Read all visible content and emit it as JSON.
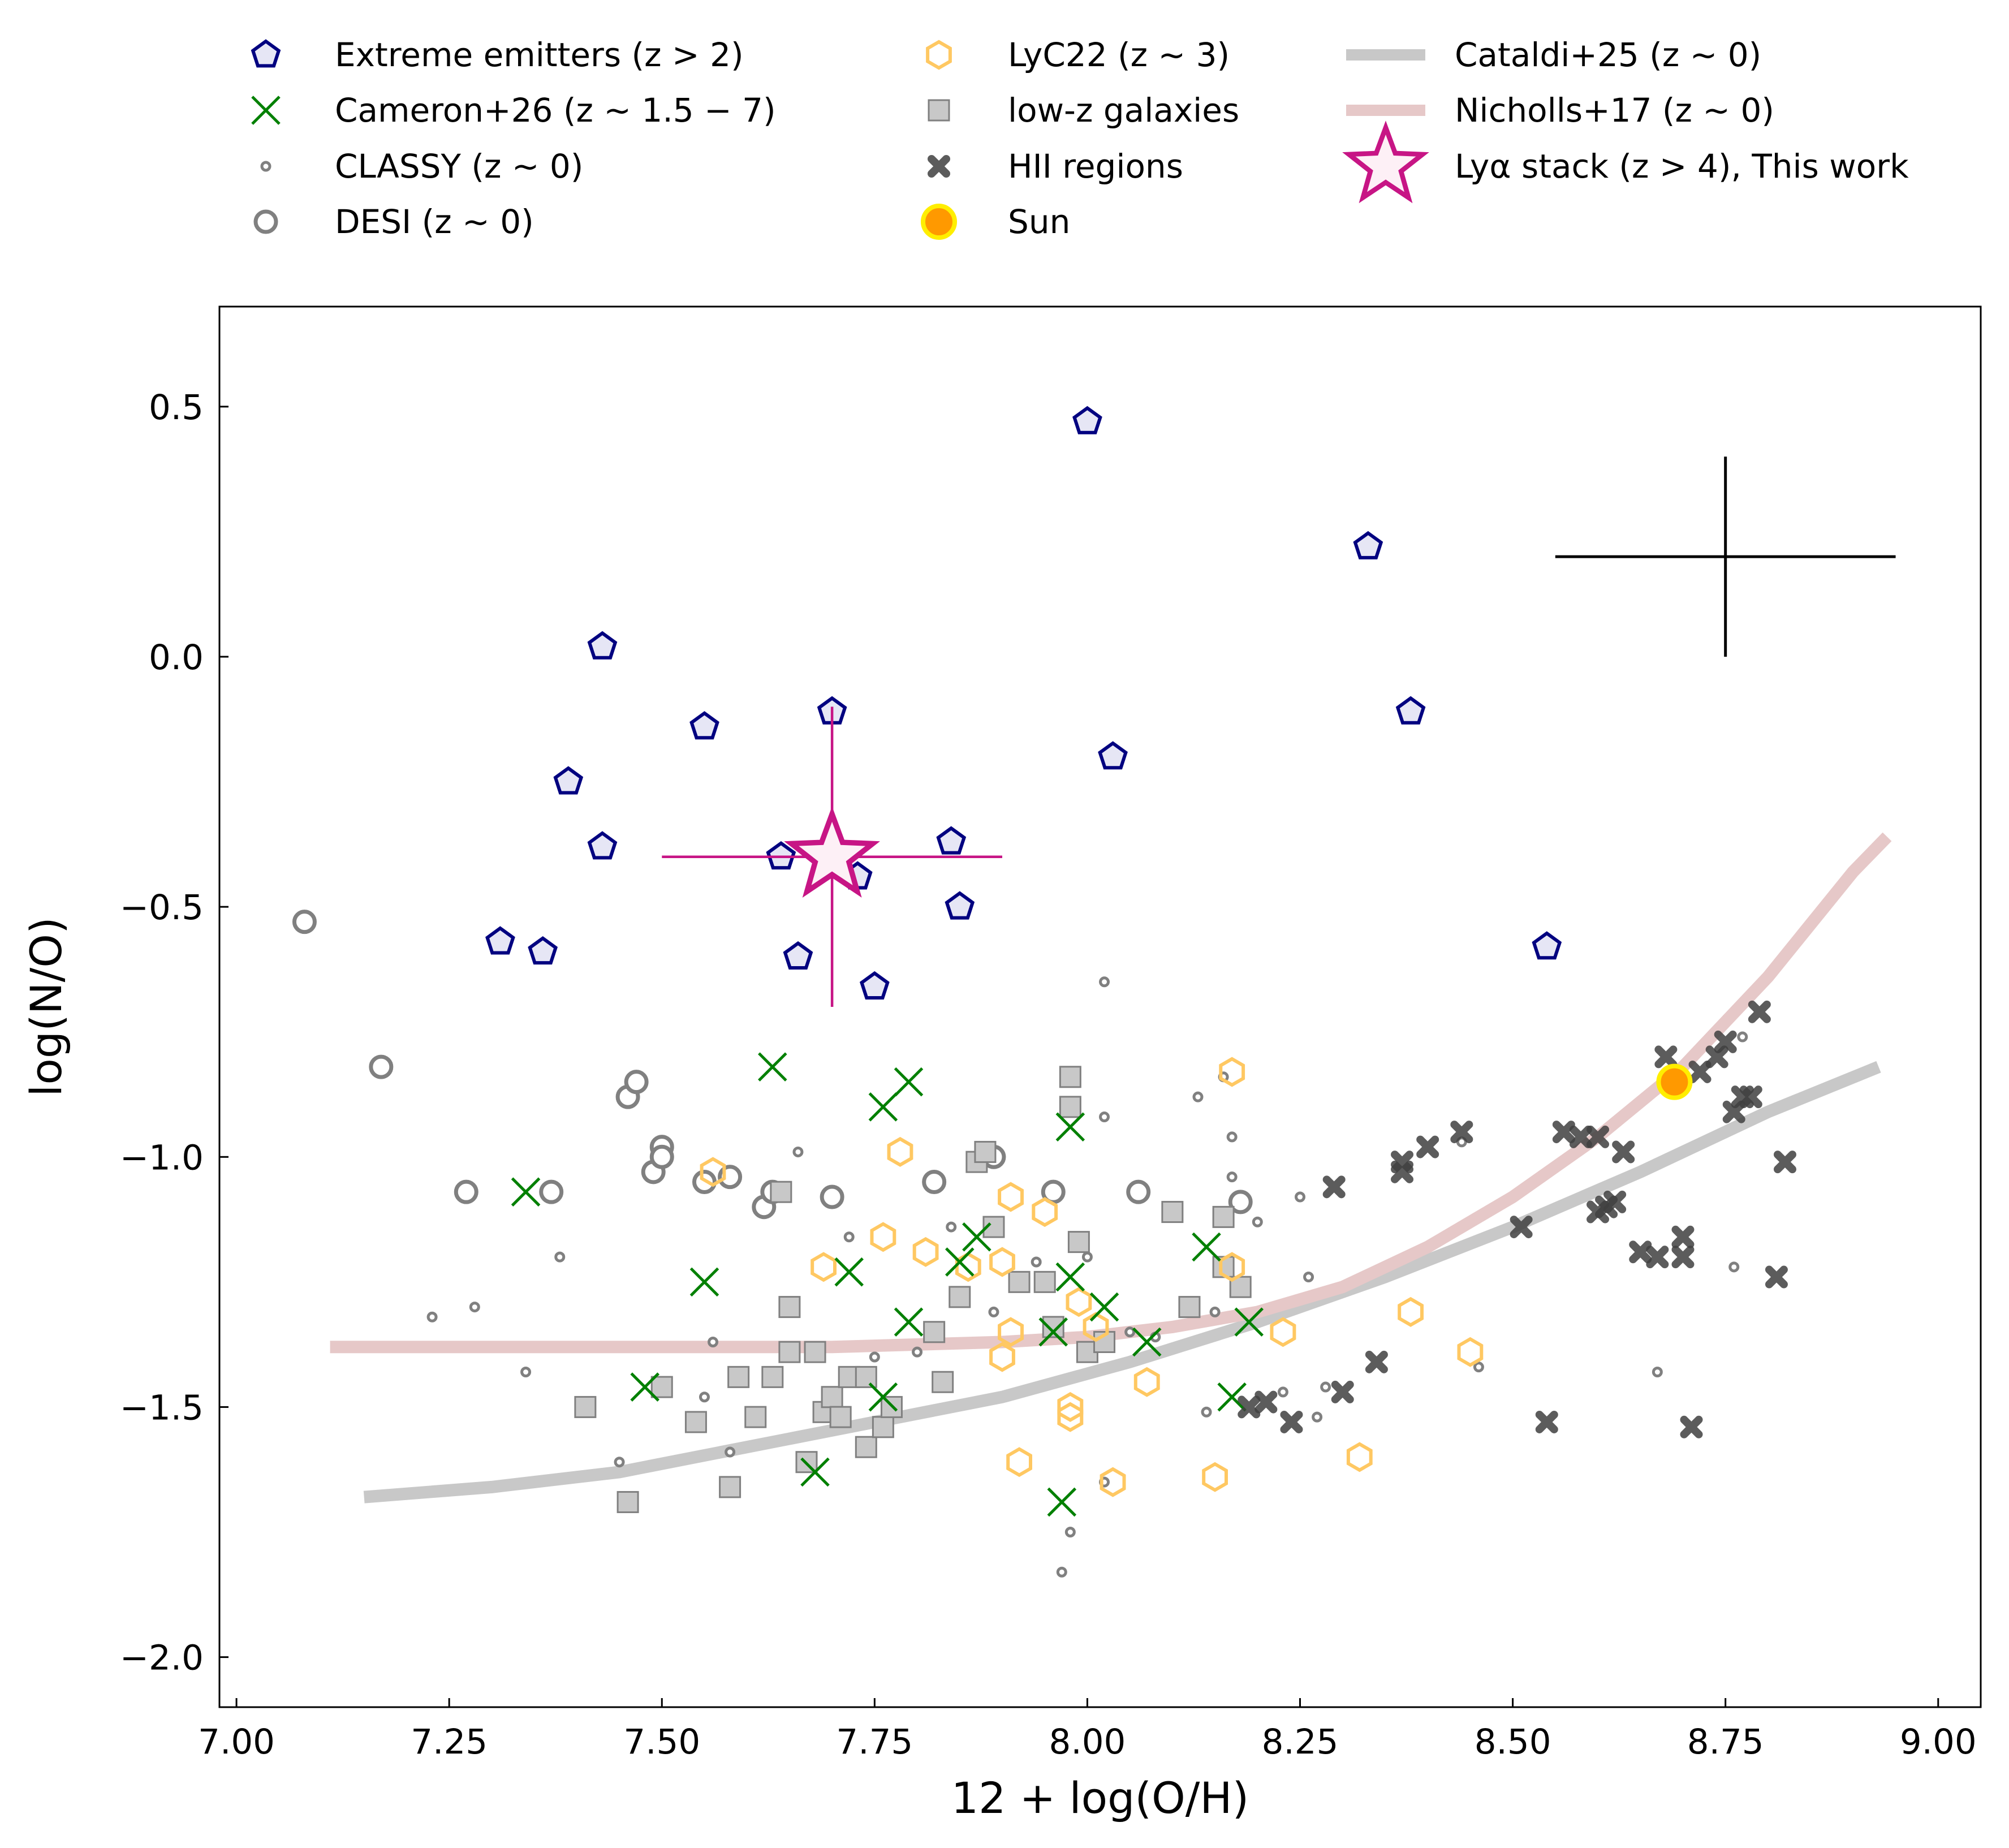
{
  "chart_data": {
    "type": "scatter",
    "xlabel": "12 + log(O/H)",
    "ylabel": "log(N/O)",
    "xlim": [
      6.98,
      9.05
    ],
    "ylim": [
      -2.1,
      0.7
    ],
    "xticks": [
      {
        "v": 7.0,
        "t": "7.00"
      },
      {
        "v": 7.25,
        "t": "7.25"
      },
      {
        "v": 7.5,
        "t": "7.50"
      },
      {
        "v": 7.75,
        "t": "7.75"
      },
      {
        "v": 8.0,
        "t": "8.00"
      },
      {
        "v": 8.25,
        "t": "8.25"
      },
      {
        "v": 8.5,
        "t": "8.50"
      },
      {
        "v": 8.75,
        "t": "8.75"
      },
      {
        "v": 9.0,
        "t": "9.00"
      }
    ],
    "yticks": [
      {
        "v": 0.5,
        "t": "0.5"
      },
      {
        "v": 0.0,
        "t": "0.0"
      },
      {
        "v": -0.5,
        "t": "−0.5"
      },
      {
        "v": -1.0,
        "t": "−1.0"
      },
      {
        "v": -1.5,
        "t": "−1.5"
      },
      {
        "v": -2.0,
        "t": "−2.0"
      }
    ],
    "legend_placement": "top, outside plot, three columns",
    "legend": [
      {
        "key": "extreme",
        "label": "Extreme emitters (z > 2)"
      },
      {
        "key": "cameron",
        "label": "Cameron+26 (z ∼ 1.5 − 7)"
      },
      {
        "key": "classy",
        "label": "CLASSY (z ∼ 0)"
      },
      {
        "key": "desi",
        "label": "DESI (z ∼ 0)"
      },
      {
        "key": "lyc22",
        "label": "LyC22 (z ∼ 3)"
      },
      {
        "key": "lowz",
        "label": "low-z galaxies"
      },
      {
        "key": "hii",
        "label": "HII regions"
      },
      {
        "key": "sun",
        "label": "Sun"
      },
      {
        "key": "cataldi",
        "label": "Cataldi+25 (z ∼ 0)"
      },
      {
        "key": "nicholls",
        "label": "Nicholls+17 (z ∼ 0)"
      },
      {
        "key": "stack",
        "label": "Lyα stack (z > 4), This work"
      }
    ],
    "colors": {
      "extreme_edge": "#000080",
      "extreme_fill": "#e6e6f5",
      "cameron": "#008000",
      "classy": "#808080",
      "desi": "#808080",
      "lyc22": "#ffc862",
      "lowz_fill": "#c8c8c8",
      "lowz_edge": "#808080",
      "hii": "#404040",
      "sun_fill": "#ff9900",
      "sun_edge": "#ffee00",
      "cataldi": "#c8c8c8",
      "nicholls": "#e6c8c8",
      "stack_edge": "#c71585",
      "stack_fill": "#fdf0f6",
      "errorbar": "#000000"
    },
    "series": {
      "extreme": [
        [
          8.0,
          0.47
        ],
        [
          8.33,
          0.22
        ],
        [
          7.43,
          0.02
        ],
        [
          7.7,
          -0.11
        ],
        [
          8.38,
          -0.11
        ],
        [
          7.55,
          -0.14
        ],
        [
          8.03,
          -0.2
        ],
        [
          7.39,
          -0.25
        ],
        [
          7.43,
          -0.38
        ],
        [
          7.84,
          -0.37
        ],
        [
          7.64,
          -0.4
        ],
        [
          7.73,
          -0.44
        ],
        [
          7.85,
          -0.5
        ],
        [
          7.31,
          -0.57
        ],
        [
          7.36,
          -0.59
        ],
        [
          7.66,
          -0.6
        ],
        [
          7.75,
          -0.66
        ],
        [
          8.54,
          -0.58
        ]
      ],
      "cameron": [
        [
          7.34,
          -1.07
        ],
        [
          7.63,
          -0.82
        ],
        [
          7.76,
          -0.9
        ],
        [
          7.79,
          -0.85
        ],
        [
          7.98,
          -0.94
        ],
        [
          7.55,
          -1.25
        ],
        [
          7.72,
          -1.23
        ],
        [
          7.85,
          -1.21
        ],
        [
          7.79,
          -1.33
        ],
        [
          7.87,
          -1.16
        ],
        [
          7.98,
          -1.24
        ],
        [
          8.02,
          -1.3
        ],
        [
          7.96,
          -1.35
        ],
        [
          8.07,
          -1.37
        ],
        [
          8.14,
          -1.18
        ],
        [
          8.19,
          -1.33
        ],
        [
          8.17,
          -1.48
        ],
        [
          7.48,
          -1.46
        ],
        [
          7.76,
          -1.48
        ],
        [
          7.68,
          -1.63
        ],
        [
          7.97,
          -1.69
        ]
      ],
      "classy": [
        [
          7.23,
          -1.32
        ],
        [
          7.28,
          -1.3
        ],
        [
          7.34,
          -1.43
        ],
        [
          7.38,
          -1.2
        ],
        [
          7.45,
          -1.61
        ],
        [
          7.55,
          -1.48
        ],
        [
          7.56,
          -1.37
        ],
        [
          7.58,
          -1.59
        ],
        [
          7.66,
          -0.99
        ],
        [
          7.72,
          -1.16
        ],
        [
          7.75,
          -1.4
        ],
        [
          7.8,
          -1.39
        ],
        [
          7.84,
          -1.14
        ],
        [
          7.89,
          -1.31
        ],
        [
          7.94,
          -1.21
        ],
        [
          7.97,
          -1.83
        ],
        [
          7.98,
          -1.75
        ],
        [
          8.0,
          -1.2
        ],
        [
          8.02,
          -0.92
        ],
        [
          8.02,
          -0.65
        ],
        [
          8.02,
          -1.65
        ],
        [
          8.05,
          -1.35
        ],
        [
          8.08,
          -1.36
        ],
        [
          8.13,
          -0.88
        ],
        [
          8.14,
          -1.51
        ],
        [
          8.15,
          -1.31
        ],
        [
          8.16,
          -0.84
        ],
        [
          8.17,
          -0.96
        ],
        [
          8.17,
          -1.04
        ],
        [
          8.2,
          -1.13
        ],
        [
          8.23,
          -1.47
        ],
        [
          8.25,
          -1.08
        ],
        [
          8.26,
          -1.24
        ],
        [
          8.27,
          -1.52
        ],
        [
          8.28,
          -1.46
        ],
        [
          8.44,
          -0.97
        ],
        [
          8.46,
          -1.42
        ],
        [
          8.67,
          -1.43
        ],
        [
          8.76,
          -1.22
        ],
        [
          8.77,
          -0.76
        ]
      ],
      "desi": [
        [
          7.08,
          -0.53
        ],
        [
          7.17,
          -0.82
        ],
        [
          7.27,
          -1.07
        ],
        [
          7.37,
          -1.07
        ],
        [
          7.46,
          -0.88
        ],
        [
          7.47,
          -0.85
        ],
        [
          7.49,
          -1.03
        ],
        [
          7.5,
          -0.98
        ],
        [
          7.5,
          -1.0
        ],
        [
          7.55,
          -1.05
        ],
        [
          7.58,
          -1.04
        ],
        [
          7.62,
          -1.1
        ],
        [
          7.63,
          -1.07
        ],
        [
          7.7,
          -1.08
        ],
        [
          7.82,
          -1.05
        ],
        [
          7.89,
          -1.0
        ],
        [
          7.96,
          -1.07
        ],
        [
          8.06,
          -1.07
        ],
        [
          8.18,
          -1.09
        ]
      ],
      "lyc22": [
        [
          7.56,
          -1.03
        ],
        [
          7.69,
          -1.22
        ],
        [
          7.76,
          -1.16
        ],
        [
          7.78,
          -0.99
        ],
        [
          7.81,
          -1.19
        ],
        [
          7.86,
          -1.22
        ],
        [
          7.9,
          -1.21
        ],
        [
          7.91,
          -1.08
        ],
        [
          7.91,
          -1.35
        ],
        [
          7.9,
          -1.4
        ],
        [
          7.92,
          -1.61
        ],
        [
          7.95,
          -1.11
        ],
        [
          7.98,
          -1.5
        ],
        [
          7.98,
          -1.52
        ],
        [
          7.99,
          -1.29
        ],
        [
          8.01,
          -1.34
        ],
        [
          8.03,
          -1.65
        ],
        [
          8.07,
          -1.45
        ],
        [
          8.17,
          -0.83
        ],
        [
          8.17,
          -1.22
        ],
        [
          8.23,
          -1.35
        ],
        [
          8.38,
          -1.31
        ],
        [
          8.45,
          -1.39
        ],
        [
          8.32,
          -1.6
        ],
        [
          8.15,
          -1.64
        ]
      ],
      "lowz": [
        [
          7.41,
          -1.5
        ],
        [
          7.46,
          -1.69
        ],
        [
          7.5,
          -1.46
        ],
        [
          7.54,
          -1.53
        ],
        [
          7.58,
          -1.66
        ],
        [
          7.59,
          -1.44
        ],
        [
          7.61,
          -1.52
        ],
        [
          7.63,
          -1.44
        ],
        [
          7.64,
          -1.07
        ],
        [
          7.65,
          -1.3
        ],
        [
          7.65,
          -1.39
        ],
        [
          7.67,
          -1.61
        ],
        [
          7.68,
          -1.39
        ],
        [
          7.69,
          -1.51
        ],
        [
          7.7,
          -1.48
        ],
        [
          7.71,
          -1.52
        ],
        [
          7.72,
          -1.44
        ],
        [
          7.74,
          -1.58
        ],
        [
          7.74,
          -1.44
        ],
        [
          7.76,
          -1.54
        ],
        [
          7.77,
          -1.5
        ],
        [
          7.82,
          -1.35
        ],
        [
          7.83,
          -1.45
        ],
        [
          7.85,
          -1.28
        ],
        [
          7.87,
          -1.01
        ],
        [
          7.88,
          -0.99
        ],
        [
          7.89,
          -1.14
        ],
        [
          7.92,
          -1.25
        ],
        [
          7.95,
          -1.25
        ],
        [
          7.96,
          -1.34
        ],
        [
          7.98,
          -0.84
        ],
        [
          7.98,
          -0.9
        ],
        [
          7.99,
          -1.17
        ],
        [
          8.0,
          -1.39
        ],
        [
          8.02,
          -1.37
        ],
        [
          8.1,
          -1.11
        ],
        [
          8.12,
          -1.3
        ],
        [
          8.16,
          -1.12
        ],
        [
          8.16,
          -1.22
        ],
        [
          8.18,
          -1.26
        ]
      ],
      "hii": [
        [
          8.19,
          -1.5
        ],
        [
          8.21,
          -1.49
        ],
        [
          8.24,
          -1.53
        ],
        [
          8.29,
          -1.06
        ],
        [
          8.3,
          -1.47
        ],
        [
          8.34,
          -1.41
        ],
        [
          8.37,
          -1.03
        ],
        [
          8.37,
          -1.01
        ],
        [
          8.4,
          -0.98
        ],
        [
          8.44,
          -0.95
        ],
        [
          8.51,
          -1.14
        ],
        [
          8.54,
          -1.53
        ],
        [
          8.56,
          -0.95
        ],
        [
          8.58,
          -0.96
        ],
        [
          8.6,
          -0.96
        ],
        [
          8.6,
          -1.11
        ],
        [
          8.61,
          -1.1
        ],
        [
          8.62,
          -1.09
        ],
        [
          8.63,
          -0.99
        ],
        [
          8.65,
          -1.19
        ],
        [
          8.67,
          -1.2
        ],
        [
          8.68,
          -0.8
        ],
        [
          8.7,
          -1.16
        ],
        [
          8.7,
          -1.2
        ],
        [
          8.71,
          -1.54
        ],
        [
          8.72,
          -0.83
        ],
        [
          8.74,
          -0.8
        ],
        [
          8.75,
          -0.77
        ],
        [
          8.76,
          -0.91
        ],
        [
          8.77,
          -0.88
        ],
        [
          8.78,
          -0.88
        ],
        [
          8.79,
          -0.71
        ],
        [
          8.81,
          -1.24
        ],
        [
          8.82,
          -1.01
        ]
      ],
      "sun": [
        [
          8.69,
          -0.85
        ]
      ],
      "stack": {
        "x": 7.7,
        "y": -0.4,
        "xerr": 0.2,
        "yerr": 0.3
      },
      "typical_error": {
        "x": 8.75,
        "y": 0.2,
        "xerr": 0.2,
        "yerr": 0.2
      },
      "cataldi": [
        [
          7.15,
          -1.68
        ],
        [
          7.3,
          -1.66
        ],
        [
          7.45,
          -1.63
        ],
        [
          7.6,
          -1.58
        ],
        [
          7.75,
          -1.53
        ],
        [
          7.9,
          -1.48
        ],
        [
          8.05,
          -1.41
        ],
        [
          8.2,
          -1.33
        ],
        [
          8.35,
          -1.24
        ],
        [
          8.5,
          -1.14
        ],
        [
          8.65,
          -1.03
        ],
        [
          8.8,
          -0.91
        ],
        [
          8.93,
          -0.82
        ]
      ],
      "nicholls": [
        [
          7.11,
          -1.38
        ],
        [
          7.3,
          -1.38
        ],
        [
          7.5,
          -1.38
        ],
        [
          7.7,
          -1.38
        ],
        [
          7.9,
          -1.37
        ],
        [
          8.0,
          -1.36
        ],
        [
          8.1,
          -1.34
        ],
        [
          8.2,
          -1.31
        ],
        [
          8.3,
          -1.26
        ],
        [
          8.4,
          -1.18
        ],
        [
          8.5,
          -1.08
        ],
        [
          8.6,
          -0.96
        ],
        [
          8.7,
          -0.82
        ],
        [
          8.8,
          -0.64
        ],
        [
          8.9,
          -0.43
        ],
        [
          8.94,
          -0.36
        ]
      ]
    }
  }
}
